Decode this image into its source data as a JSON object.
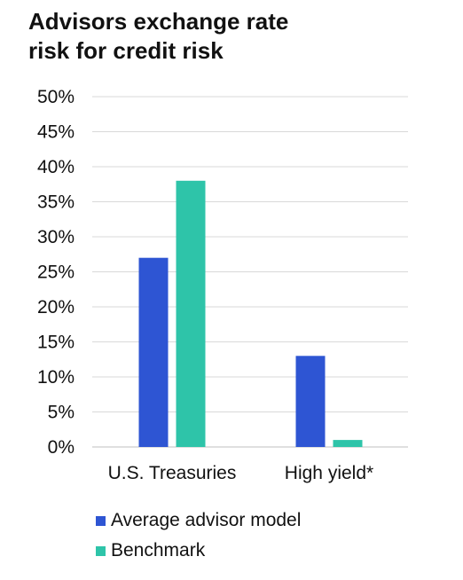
{
  "title_lines": [
    "Advisors exchange rate",
    "risk for credit risk"
  ],
  "chart_data": {
    "type": "bar",
    "title": "Advisors exchange rate risk for credit risk",
    "categories": [
      "U.S. Treasuries",
      "High yield*"
    ],
    "series": [
      {
        "name": "Average advisor model",
        "values": [
          27,
          13
        ],
        "color": "#2e55d3"
      },
      {
        "name": "Benchmark",
        "values": [
          38,
          1
        ],
        "color": "#2ec4a9"
      }
    ],
    "ylim": [
      0,
      50
    ],
    "yticks": [
      0,
      5,
      10,
      15,
      20,
      25,
      30,
      35,
      40,
      45,
      50
    ],
    "ytick_labels": [
      "0%",
      "5%",
      "10%",
      "15%",
      "20%",
      "25%",
      "30%",
      "35%",
      "40%",
      "45%",
      "50%"
    ],
    "grid": true,
    "legend_position": "bottom-left",
    "xlabel": "",
    "ylabel": ""
  }
}
